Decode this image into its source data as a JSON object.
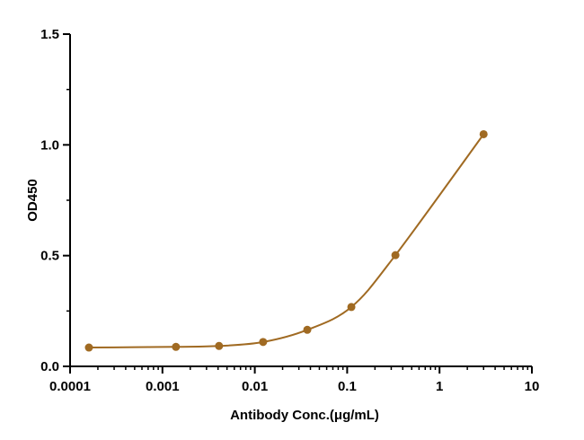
{
  "chart_data": {
    "type": "scatter",
    "xlabel": "Antibody Conc.(μg/mL)",
    "ylabel": "OD450",
    "xscale": "log",
    "xlim": [
      0.0001,
      10
    ],
    "ylim": [
      0,
      1.5
    ],
    "x_ticks": [
      "0.0001",
      "0.001",
      "0.01",
      "0.1",
      "1",
      "10"
    ],
    "y_ticks": [
      "0.0",
      "0.5",
      "1.0",
      "1.5"
    ],
    "grid": false,
    "legend": "none",
    "colors": {
      "series": "#a06a22",
      "axis": "#000000"
    },
    "series": [
      {
        "x": [
          0.00016,
          0.0014,
          0.0041,
          0.0123,
          0.037,
          0.111,
          0.333,
          3.0
        ],
        "y": [
          0.085,
          0.088,
          0.092,
          0.11,
          0.165,
          0.268,
          0.502,
          1.048
        ],
        "fit": "4PL sigmoidal curve"
      }
    ]
  }
}
